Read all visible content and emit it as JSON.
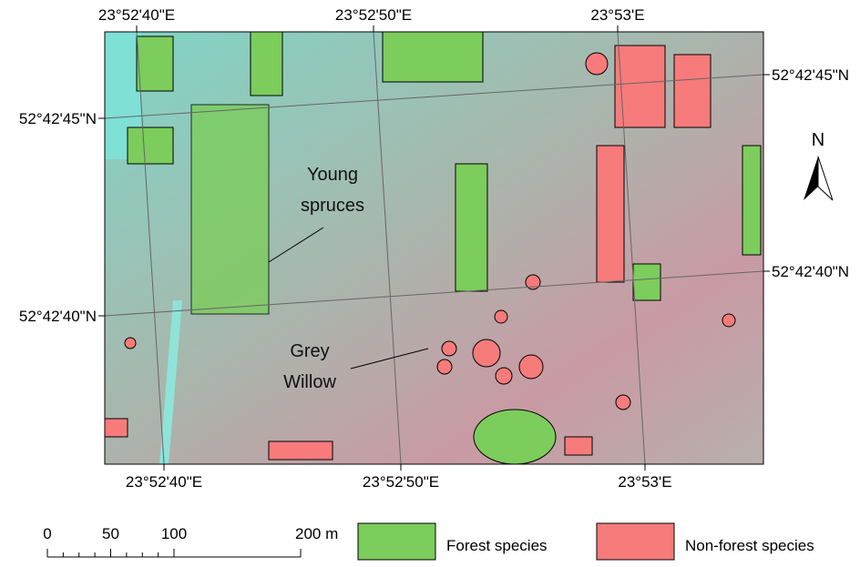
{
  "map": {
    "top_labels": [
      "23°52'40\"E",
      "23°52'50\"E",
      "23°53'E"
    ],
    "bottom_labels": [
      "23°52'40\"E",
      "23°52'50\"E",
      "23°53'E"
    ],
    "left_labels": [
      "52°42'45\"N",
      "52°42'40\"N"
    ],
    "right_labels": [
      "52°42'45\"N",
      "52°42'40\"N"
    ],
    "north": "N",
    "annotations": [
      {
        "lines": [
          "Young",
          "spruces"
        ]
      },
      {
        "lines": [
          "Grey",
          "Willow"
        ]
      }
    ]
  },
  "scale_bar": {
    "ticks": [
      {
        "value": 0,
        "label": "0"
      },
      {
        "value": 50,
        "label": "50"
      },
      {
        "value": 100,
        "label": "100"
      },
      {
        "value": 200,
        "label": "200 m"
      }
    ]
  },
  "legend": [
    {
      "label": "Forest species",
      "color": "#7ccd5c"
    },
    {
      "label": "Non-forest species",
      "color": "#f77b7b"
    }
  ]
}
